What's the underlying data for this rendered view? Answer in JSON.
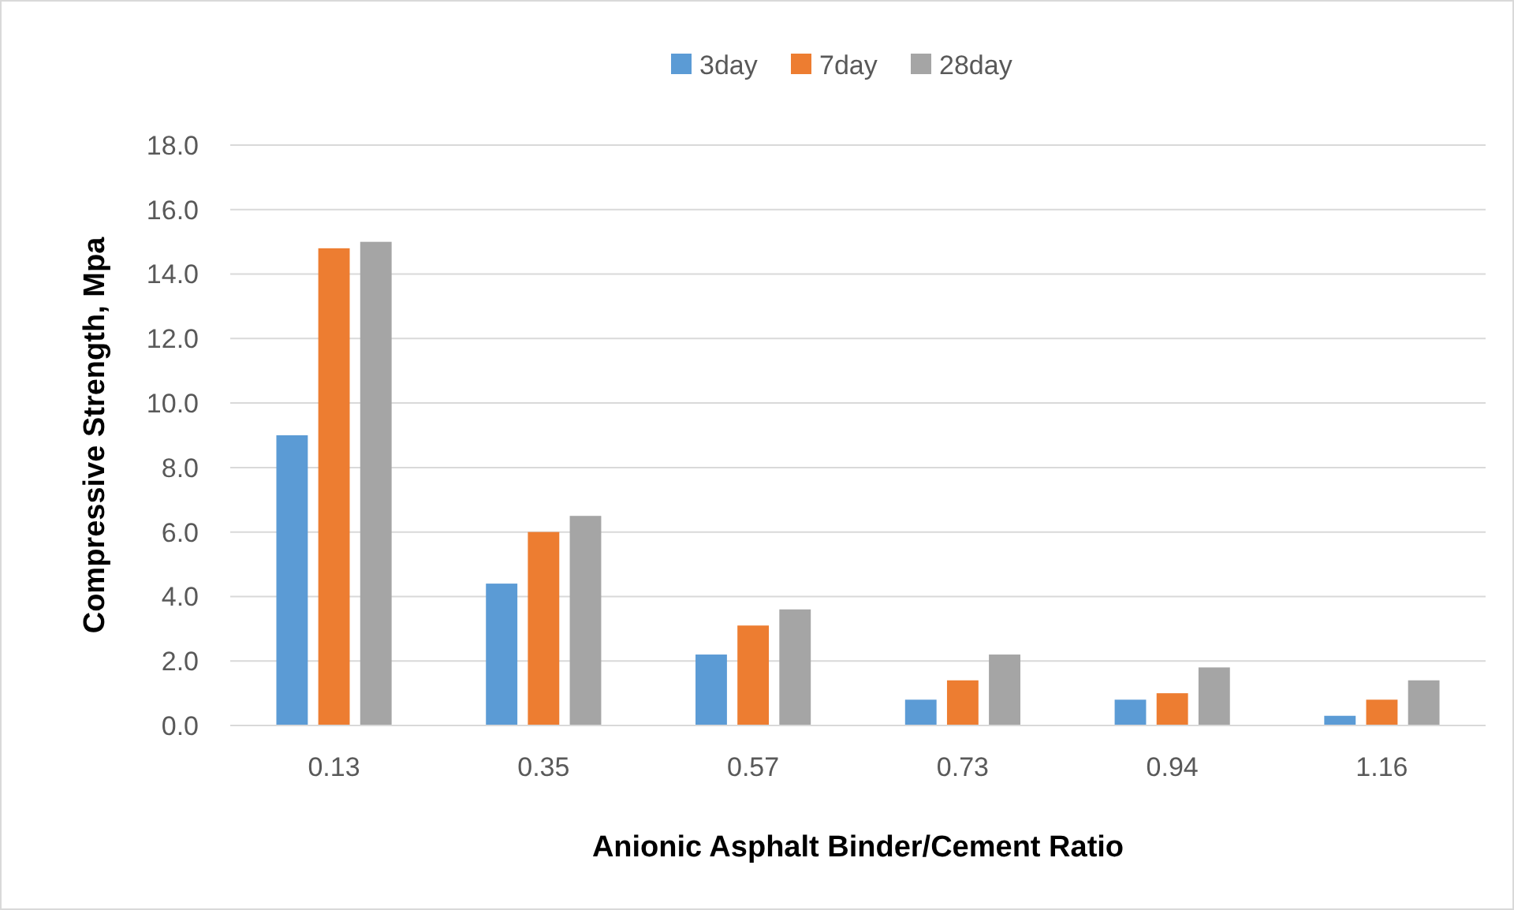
{
  "chart_data": {
    "type": "bar",
    "xlabel": "Anionic Asphalt Binder/Cement Ratio",
    "ylabel": "Compressive Strength, Mpa",
    "categories": [
      "0.13",
      "0.35",
      "0.57",
      "0.73",
      "0.94",
      "1.16"
    ],
    "series": [
      {
        "name": "3day",
        "color": "#5b9bd5",
        "values": [
          9.0,
          4.4,
          2.2,
          0.8,
          0.8,
          0.3
        ]
      },
      {
        "name": "7day",
        "color": "#ed7d31",
        "values": [
          14.8,
          6.0,
          3.1,
          1.4,
          1.0,
          0.8
        ]
      },
      {
        "name": "28day",
        "color": "#a5a5a5",
        "values": [
          15.0,
          6.5,
          3.6,
          2.2,
          1.8,
          1.4
        ]
      }
    ],
    "ylim": [
      0,
      18
    ],
    "yticks": [
      {
        "value": 0,
        "label": "0.0"
      },
      {
        "value": 2,
        "label": "2.0"
      },
      {
        "value": 4,
        "label": "4.0"
      },
      {
        "value": 6,
        "label": "6.0"
      },
      {
        "value": 8,
        "label": "8.0"
      },
      {
        "value": 10,
        "label": "10.0"
      },
      {
        "value": 12,
        "label": "12.0"
      },
      {
        "value": 14,
        "label": "14.0"
      },
      {
        "value": 16,
        "label": "16.0"
      },
      {
        "value": 18,
        "label": "18.0"
      }
    ],
    "grid": "y",
    "legend": "top"
  }
}
